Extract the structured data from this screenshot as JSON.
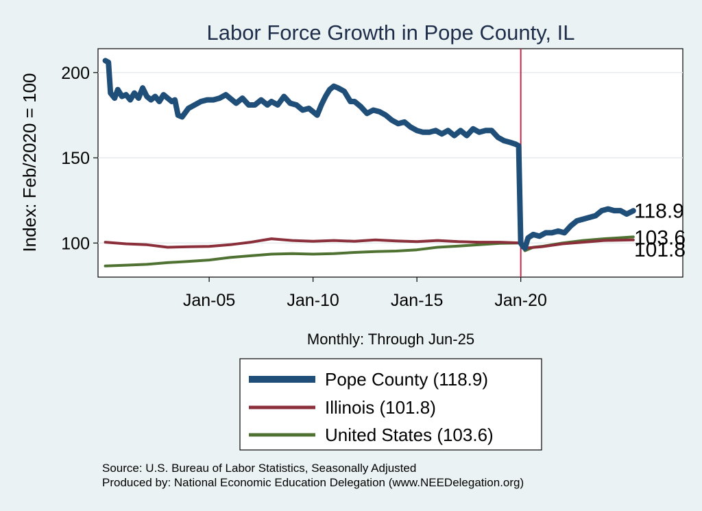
{
  "chart_data": {
    "type": "line",
    "title": "Labor Force Growth in Pope  County, IL",
    "xlabel": "Monthly: Through Jun-25",
    "ylabel": "Index: Feb/2020 = 100",
    "x_start": 2000.0,
    "x_end": 2025.417,
    "xlim": [
      1999.65,
      2027.8
    ],
    "ylim": [
      80,
      214
    ],
    "yticks": [
      100,
      150,
      200
    ],
    "xticks": [
      {
        "value": 2005,
        "label": "Jan-05"
      },
      {
        "value": 2010,
        "label": "Jan-10"
      },
      {
        "value": 2015,
        "label": "Jan-15"
      },
      {
        "value": 2020,
        "label": "Jan-20"
      }
    ],
    "vline": {
      "x": 2020.0,
      "color": "#c0284a"
    },
    "series": [
      {
        "name": "Pope  County",
        "legend": "Pope  County (118.9)",
        "end_label": "118.9",
        "color": "#1f4e79",
        "width": 8,
        "points": [
          [
            2000.0,
            207
          ],
          [
            2000.15,
            206
          ],
          [
            2000.25,
            188
          ],
          [
            2000.45,
            185
          ],
          [
            2000.6,
            190
          ],
          [
            2000.8,
            186
          ],
          [
            2001.0,
            187
          ],
          [
            2001.2,
            184
          ],
          [
            2001.4,
            188
          ],
          [
            2001.6,
            185
          ],
          [
            2001.8,
            191
          ],
          [
            2002.0,
            186
          ],
          [
            2002.2,
            184
          ],
          [
            2002.4,
            186
          ],
          [
            2002.6,
            183
          ],
          [
            2002.8,
            187
          ],
          [
            2003.0,
            185
          ],
          [
            2003.2,
            183
          ],
          [
            2003.35,
            184
          ],
          [
            2003.5,
            175
          ],
          [
            2003.7,
            174
          ],
          [
            2004.0,
            179
          ],
          [
            2004.3,
            181
          ],
          [
            2004.6,
            183
          ],
          [
            2004.9,
            184
          ],
          [
            2005.2,
            184
          ],
          [
            2005.5,
            185
          ],
          [
            2005.8,
            187
          ],
          [
            2006.0,
            185
          ],
          [
            2006.3,
            182
          ],
          [
            2006.6,
            185
          ],
          [
            2006.9,
            181
          ],
          [
            2007.2,
            181
          ],
          [
            2007.5,
            184
          ],
          [
            2007.8,
            181
          ],
          [
            2008.0,
            183
          ],
          [
            2008.3,
            181
          ],
          [
            2008.6,
            186
          ],
          [
            2008.9,
            182
          ],
          [
            2009.2,
            181
          ],
          [
            2009.5,
            178
          ],
          [
            2009.8,
            179
          ],
          [
            2010.0,
            177
          ],
          [
            2010.2,
            175
          ],
          [
            2010.4,
            181
          ],
          [
            2010.6,
            186
          ],
          [
            2010.8,
            190
          ],
          [
            2011.0,
            192
          ],
          [
            2011.2,
            191
          ],
          [
            2011.5,
            189
          ],
          [
            2011.8,
            183
          ],
          [
            2012.0,
            183
          ],
          [
            2012.3,
            180
          ],
          [
            2012.6,
            176
          ],
          [
            2012.9,
            178
          ],
          [
            2013.2,
            177
          ],
          [
            2013.5,
            175
          ],
          [
            2013.8,
            172
          ],
          [
            2014.1,
            170
          ],
          [
            2014.4,
            171
          ],
          [
            2014.7,
            168
          ],
          [
            2015.0,
            166
          ],
          [
            2015.3,
            165
          ],
          [
            2015.6,
            165
          ],
          [
            2015.9,
            166
          ],
          [
            2016.2,
            164
          ],
          [
            2016.5,
            166
          ],
          [
            2016.8,
            163
          ],
          [
            2017.1,
            166
          ],
          [
            2017.4,
            163
          ],
          [
            2017.7,
            167
          ],
          [
            2018.0,
            165
          ],
          [
            2018.3,
            166
          ],
          [
            2018.6,
            166
          ],
          [
            2018.9,
            162
          ],
          [
            2019.2,
            160
          ],
          [
            2019.5,
            159
          ],
          [
            2019.75,
            158
          ],
          [
            2019.9,
            157
          ],
          [
            2020.0,
            100
          ],
          [
            2020.1,
            98
          ],
          [
            2020.2,
            97
          ],
          [
            2020.35,
            103
          ],
          [
            2020.6,
            105
          ],
          [
            2020.9,
            104
          ],
          [
            2021.2,
            106
          ],
          [
            2021.5,
            106
          ],
          [
            2021.8,
            107
          ],
          [
            2022.1,
            106
          ],
          [
            2022.4,
            110
          ],
          [
            2022.7,
            113
          ],
          [
            2023.0,
            114
          ],
          [
            2023.3,
            115
          ],
          [
            2023.6,
            116
          ],
          [
            2023.9,
            119
          ],
          [
            2024.2,
            120
          ],
          [
            2024.5,
            119
          ],
          [
            2024.8,
            119
          ],
          [
            2025.1,
            117
          ],
          [
            2025.417,
            118.9
          ]
        ]
      },
      {
        "name": "Illinois",
        "legend": "Illinois (101.8)",
        "end_label": "101.8",
        "color": "#8b2f3b",
        "width": 4,
        "points": [
          [
            2000.0,
            100.5
          ],
          [
            2001.0,
            99.5
          ],
          [
            2002.0,
            99.0
          ],
          [
            2003.0,
            97.5
          ],
          [
            2004.0,
            97.8
          ],
          [
            2005.0,
            98.0
          ],
          [
            2006.0,
            99.0
          ],
          [
            2007.0,
            100.5
          ],
          [
            2008.0,
            102.5
          ],
          [
            2009.0,
            101.5
          ],
          [
            2010.0,
            101.0
          ],
          [
            2011.0,
            101.5
          ],
          [
            2012.0,
            101.0
          ],
          [
            2013.0,
            101.8
          ],
          [
            2014.0,
            101.2
          ],
          [
            2015.0,
            100.8
          ],
          [
            2016.0,
            101.5
          ],
          [
            2017.0,
            100.8
          ],
          [
            2018.0,
            100.5
          ],
          [
            2019.0,
            100.5
          ],
          [
            2020.0,
            100.0
          ],
          [
            2020.2,
            97.0
          ],
          [
            2021.0,
            97.8
          ],
          [
            2022.0,
            99.5
          ],
          [
            2023.0,
            100.5
          ],
          [
            2024.0,
            101.5
          ],
          [
            2025.417,
            101.8
          ]
        ]
      },
      {
        "name": "United States",
        "legend": "United States (103.6)",
        "end_label": "103.6",
        "color": "#4f7232",
        "width": 4,
        "points": [
          [
            2000.0,
            86.5
          ],
          [
            2001.0,
            87.0
          ],
          [
            2002.0,
            87.5
          ],
          [
            2003.0,
            88.5
          ],
          [
            2004.0,
            89.2
          ],
          [
            2005.0,
            90.0
          ],
          [
            2006.0,
            91.5
          ],
          [
            2007.0,
            92.5
          ],
          [
            2008.0,
            93.5
          ],
          [
            2009.0,
            93.8
          ],
          [
            2010.0,
            93.5
          ],
          [
            2011.0,
            93.8
          ],
          [
            2012.0,
            94.5
          ],
          [
            2013.0,
            95.0
          ],
          [
            2014.0,
            95.3
          ],
          [
            2015.0,
            96.0
          ],
          [
            2016.0,
            97.5
          ],
          [
            2017.0,
            98.2
          ],
          [
            2018.0,
            99.0
          ],
          [
            2019.0,
            99.8
          ],
          [
            2020.0,
            100.0
          ],
          [
            2020.2,
            95.5
          ],
          [
            2020.6,
            97.5
          ],
          [
            2021.0,
            98.0
          ],
          [
            2022.0,
            100.0
          ],
          [
            2023.0,
            101.5
          ],
          [
            2024.0,
            102.5
          ],
          [
            2025.417,
            103.6
          ]
        ]
      }
    ]
  },
  "source_lines": [
    "Source: U.S. Bureau of Labor Statistics, Seasonally Adjusted",
    "Produced by: National Economic Education Delegation (www.NEEDelegation.org)"
  ]
}
